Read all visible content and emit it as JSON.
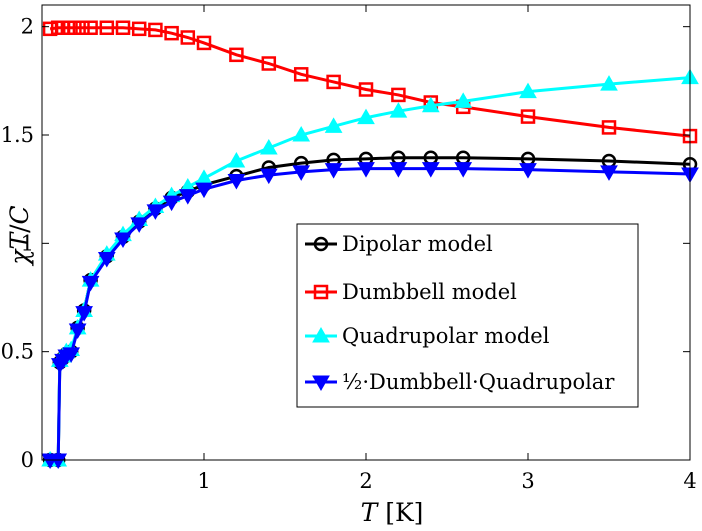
{
  "chart_data": {
    "type": "line",
    "xlabel": "T [K]",
    "ylabel": "χT/C",
    "xlim": [
      0,
      4
    ],
    "ylim": [
      0,
      2.1
    ],
    "xticks": [
      1,
      2,
      3,
      4
    ],
    "yticks": [
      0,
      0.5,
      1,
      1.5,
      2
    ],
    "xtick_labels": [
      "1",
      "2",
      "3",
      "4"
    ],
    "ytick_labels": [
      "0",
      "0.5",
      "1",
      "1.5",
      "2"
    ],
    "grid": false,
    "legend_position": "center-right",
    "series": [
      {
        "name": "Dipolar model",
        "color": "#000000",
        "marker": "circle",
        "x": [
          0.05,
          0.1,
          0.11,
          0.13,
          0.15,
          0.18,
          0.22,
          0.26,
          0.3,
          0.4,
          0.5,
          0.6,
          0.7,
          0.8,
          0.9,
          1.0,
          1.2,
          1.4,
          1.6,
          1.8,
          2.0,
          2.2,
          2.4,
          2.6,
          3.0,
          3.5,
          4.0
        ],
        "y": [
          0,
          0,
          0.45,
          0.47,
          0.49,
          0.5,
          0.61,
          0.69,
          0.83,
          0.94,
          1.03,
          1.1,
          1.16,
          1.21,
          1.24,
          1.27,
          1.31,
          1.35,
          1.37,
          1.385,
          1.39,
          1.395,
          1.395,
          1.395,
          1.39,
          1.38,
          1.365
        ]
      },
      {
        "name": "Dumbbell model",
        "color": "#ff0000",
        "marker": "square",
        "x": [
          0.05,
          0.1,
          0.13,
          0.16,
          0.2,
          0.25,
          0.3,
          0.4,
          0.5,
          0.6,
          0.7,
          0.8,
          0.9,
          1.0,
          1.2,
          1.4,
          1.6,
          1.8,
          2.0,
          2.2,
          2.4,
          2.6,
          3.0,
          3.5,
          4.0
        ],
        "y": [
          1.99,
          1.995,
          1.995,
          1.995,
          1.995,
          1.995,
          1.995,
          1.995,
          1.995,
          1.99,
          1.985,
          1.97,
          1.95,
          1.925,
          1.87,
          1.83,
          1.78,
          1.745,
          1.71,
          1.685,
          1.65,
          1.63,
          1.585,
          1.535,
          1.495
        ]
      },
      {
        "name": "Quadrupolar model",
        "color": "#00ffff",
        "marker": "triangle-up",
        "x": [
          0.05,
          0.1,
          0.11,
          0.13,
          0.15,
          0.18,
          0.22,
          0.26,
          0.3,
          0.4,
          0.5,
          0.6,
          0.7,
          0.8,
          0.9,
          1.0,
          1.2,
          1.4,
          1.6,
          1.8,
          2.0,
          2.2,
          2.4,
          2.6,
          3.0,
          3.5,
          4.0
        ],
        "y": [
          0,
          0,
          0.46,
          0.48,
          0.5,
          0.51,
          0.61,
          0.69,
          0.83,
          0.95,
          1.04,
          1.11,
          1.17,
          1.22,
          1.26,
          1.3,
          1.38,
          1.44,
          1.5,
          1.54,
          1.58,
          1.61,
          1.635,
          1.655,
          1.7,
          1.735,
          1.765
        ]
      },
      {
        "name": "½·Dumbbell·Quadrupolar",
        "color": "#0000ff",
        "marker": "triangle-down",
        "x": [
          0.05,
          0.1,
          0.11,
          0.13,
          0.15,
          0.18,
          0.22,
          0.26,
          0.3,
          0.4,
          0.5,
          0.6,
          0.7,
          0.8,
          0.9,
          1.0,
          1.2,
          1.4,
          1.6,
          1.8,
          2.0,
          2.2,
          2.4,
          2.6,
          3.0,
          3.5,
          4.0
        ],
        "y": [
          0,
          0,
          0.44,
          0.46,
          0.48,
          0.49,
          0.6,
          0.68,
          0.82,
          0.93,
          1.02,
          1.09,
          1.15,
          1.19,
          1.22,
          1.25,
          1.29,
          1.315,
          1.33,
          1.34,
          1.345,
          1.345,
          1.345,
          1.345,
          1.34,
          1.33,
          1.32
        ]
      }
    ]
  }
}
